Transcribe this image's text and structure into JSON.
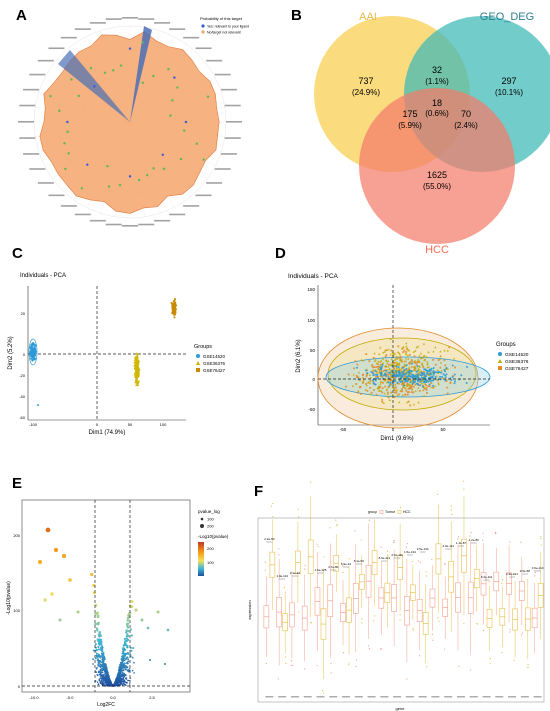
{
  "panels": {
    "a": "A",
    "b": "B",
    "c": "C",
    "d": "D",
    "e": "E",
    "f": "F"
  },
  "panel_a": {
    "legend_title": "Probability of this target",
    "legend_items": [
      "Yes: relevant to your ligand",
      "No/target not relevant"
    ],
    "colors": {
      "fill": "#f4a46a",
      "stroke": "#e07a3c",
      "highlight": "#4a6fb5",
      "dot_green": "#5cb85c",
      "dot_blue": "#3b5bdb"
    },
    "spokes": 40
  },
  "venn": {
    "sets": [
      "AAI",
      "GEO_DEG",
      "HCC"
    ],
    "colors": {
      "AAI": "#f9d66b",
      "GEO_DEG": "#3bb8b5",
      "HCC": "#f47c6b"
    },
    "label_colors": {
      "AAI": "#e6b84a",
      "GEO_DEG": "#2e7f93",
      "HCC": "#f26a4f"
    },
    "regions": [
      {
        "count": "737",
        "pct": "(24.9%)"
      },
      {
        "count": "32",
        "pct": "(1.1%)"
      },
      {
        "count": "297",
        "pct": "(10.1%)"
      },
      {
        "count": "18",
        "pct": "(0.6%)"
      },
      {
        "count": "175",
        "pct": "(5.9%)"
      },
      {
        "count": "70",
        "pct": "(2.4%)"
      },
      {
        "count": "1625",
        "pct": "(55.0%)"
      }
    ]
  },
  "pca_c": {
    "title": "Individuals - PCA",
    "xlabel": "Dim1 (74.9%)",
    "ylabel": "Dim2 (5.2%)",
    "legend_title": "Groups",
    "groups": [
      "GSE14520",
      "GSE36376",
      "GSE76427"
    ],
    "colors": [
      "#2e9bd6",
      "#d1b600",
      "#c98a00"
    ],
    "x_ticks": [
      "-100",
      "0",
      "50",
      "100"
    ],
    "y_ticks": [
      "20",
      "0",
      "-20",
      "-40",
      "-60"
    ]
  },
  "pca_d": {
    "title": "Individuals - PCA",
    "xlabel": "Dim1 (9.6%)",
    "ylabel": "Dim2 (6.1%)",
    "legend_title": "Groups",
    "groups": [
      "GSE14520",
      "GSE36376",
      "GSE76427"
    ],
    "colors": [
      "#2e9bd6",
      "#c2a900",
      "#e08a2a"
    ],
    "x_ticks": [
      "-50",
      "0",
      "50"
    ],
    "y_ticks": [
      "150",
      "100",
      "50",
      "0",
      "-50"
    ]
  },
  "volcano": {
    "xlabel": "Log2FC",
    "ylabel": "-Log10(pvalue)",
    "legend_size_title": "pvalue_log",
    "legend_size_items": [
      "100",
      "200"
    ],
    "legend_color_title": "-Log10(pvalue)",
    "colorbar_ticks": [
      "200",
      "100"
    ],
    "x_ticks": [
      "-10.0",
      "-5.0",
      "0.0",
      "2.5"
    ],
    "y_ticks": [
      "200",
      "100",
      "0"
    ]
  },
  "boxplot": {
    "legend_title": "group",
    "legend_items": [
      "Tumor",
      "HCC"
    ],
    "colors": {
      "a": "#f4a090",
      "b": "#e6c04a"
    },
    "xlabel": "gene",
    "ylabel": "expression",
    "pvals": [
      "2.2e-50",
      "1.0e-113",
      "2.1e-40",
      "1.6e-125",
      "4.7e-80",
      "5.9e-44",
      "5.1e-50",
      "8.0e-111",
      "2.0e-111",
      "1.5e-134",
      "2.5e-134",
      "2.0e-111",
      "1.4e-87",
      "4.2e-60",
      "6.2e-111",
      "2.9e-121",
      "9.5e-68",
      "3.6e-110"
    ]
  }
}
